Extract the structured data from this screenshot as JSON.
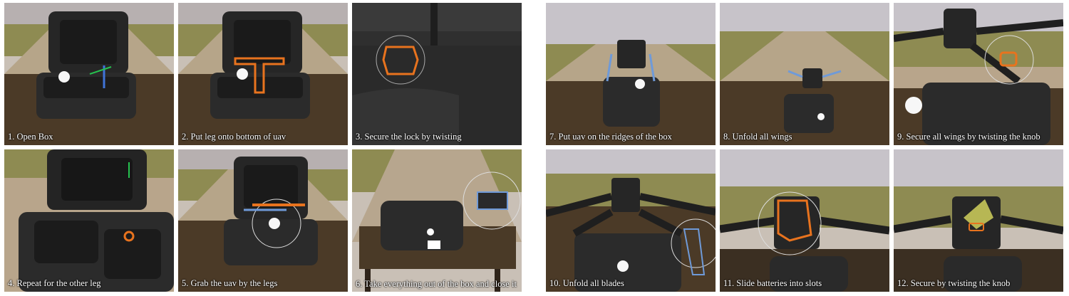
{
  "panels": [
    {
      "id": 1,
      "caption": "1. Open Box",
      "scene": "box-open"
    },
    {
      "id": 2,
      "caption": "2. Put leg onto bottom of uav",
      "scene": "box-open-leg"
    },
    {
      "id": 3,
      "caption": "3. Secure the lock by twisting",
      "scene": "closeup-lock"
    },
    {
      "id": 4,
      "caption": "4. Repeat for the other leg",
      "scene": "box-closeup"
    },
    {
      "id": 5,
      "caption": "5. Grab the uav by the legs",
      "scene": "box-open-grab"
    },
    {
      "id": 6,
      "caption": "6. Take everything out of the box and close it",
      "scene": "box-closed-table"
    },
    {
      "id": 7,
      "caption": "7. Put uav on the ridges of the box",
      "scene": "uav-on-box"
    },
    {
      "id": 8,
      "caption": "8. Unfold all wings",
      "scene": "uav-wings"
    },
    {
      "id": 9,
      "caption": "9. Secure all wings by twisting the knob",
      "scene": "uav-knob"
    },
    {
      "id": 10,
      "caption": "10. Unfold all blades",
      "scene": "uav-blades"
    },
    {
      "id": 11,
      "caption": "11. Slide batteries into slots",
      "scene": "uav-battery"
    },
    {
      "id": 12,
      "caption": "12. Secure by twisting the knob",
      "scene": "uav-battery-knob"
    }
  ],
  "colors": {
    "sky_top": "#b8b3b8",
    "sky_bottom": "#dcd6d2",
    "grass": "#8a8a4e",
    "dirt": "#b9a68a",
    "table": "#4a3a28",
    "box": "#2a2a2a",
    "highlight_orange": "#e8731e",
    "highlight_blue": "#6f9ad8",
    "highlight_yellow": "#c8c85a"
  }
}
